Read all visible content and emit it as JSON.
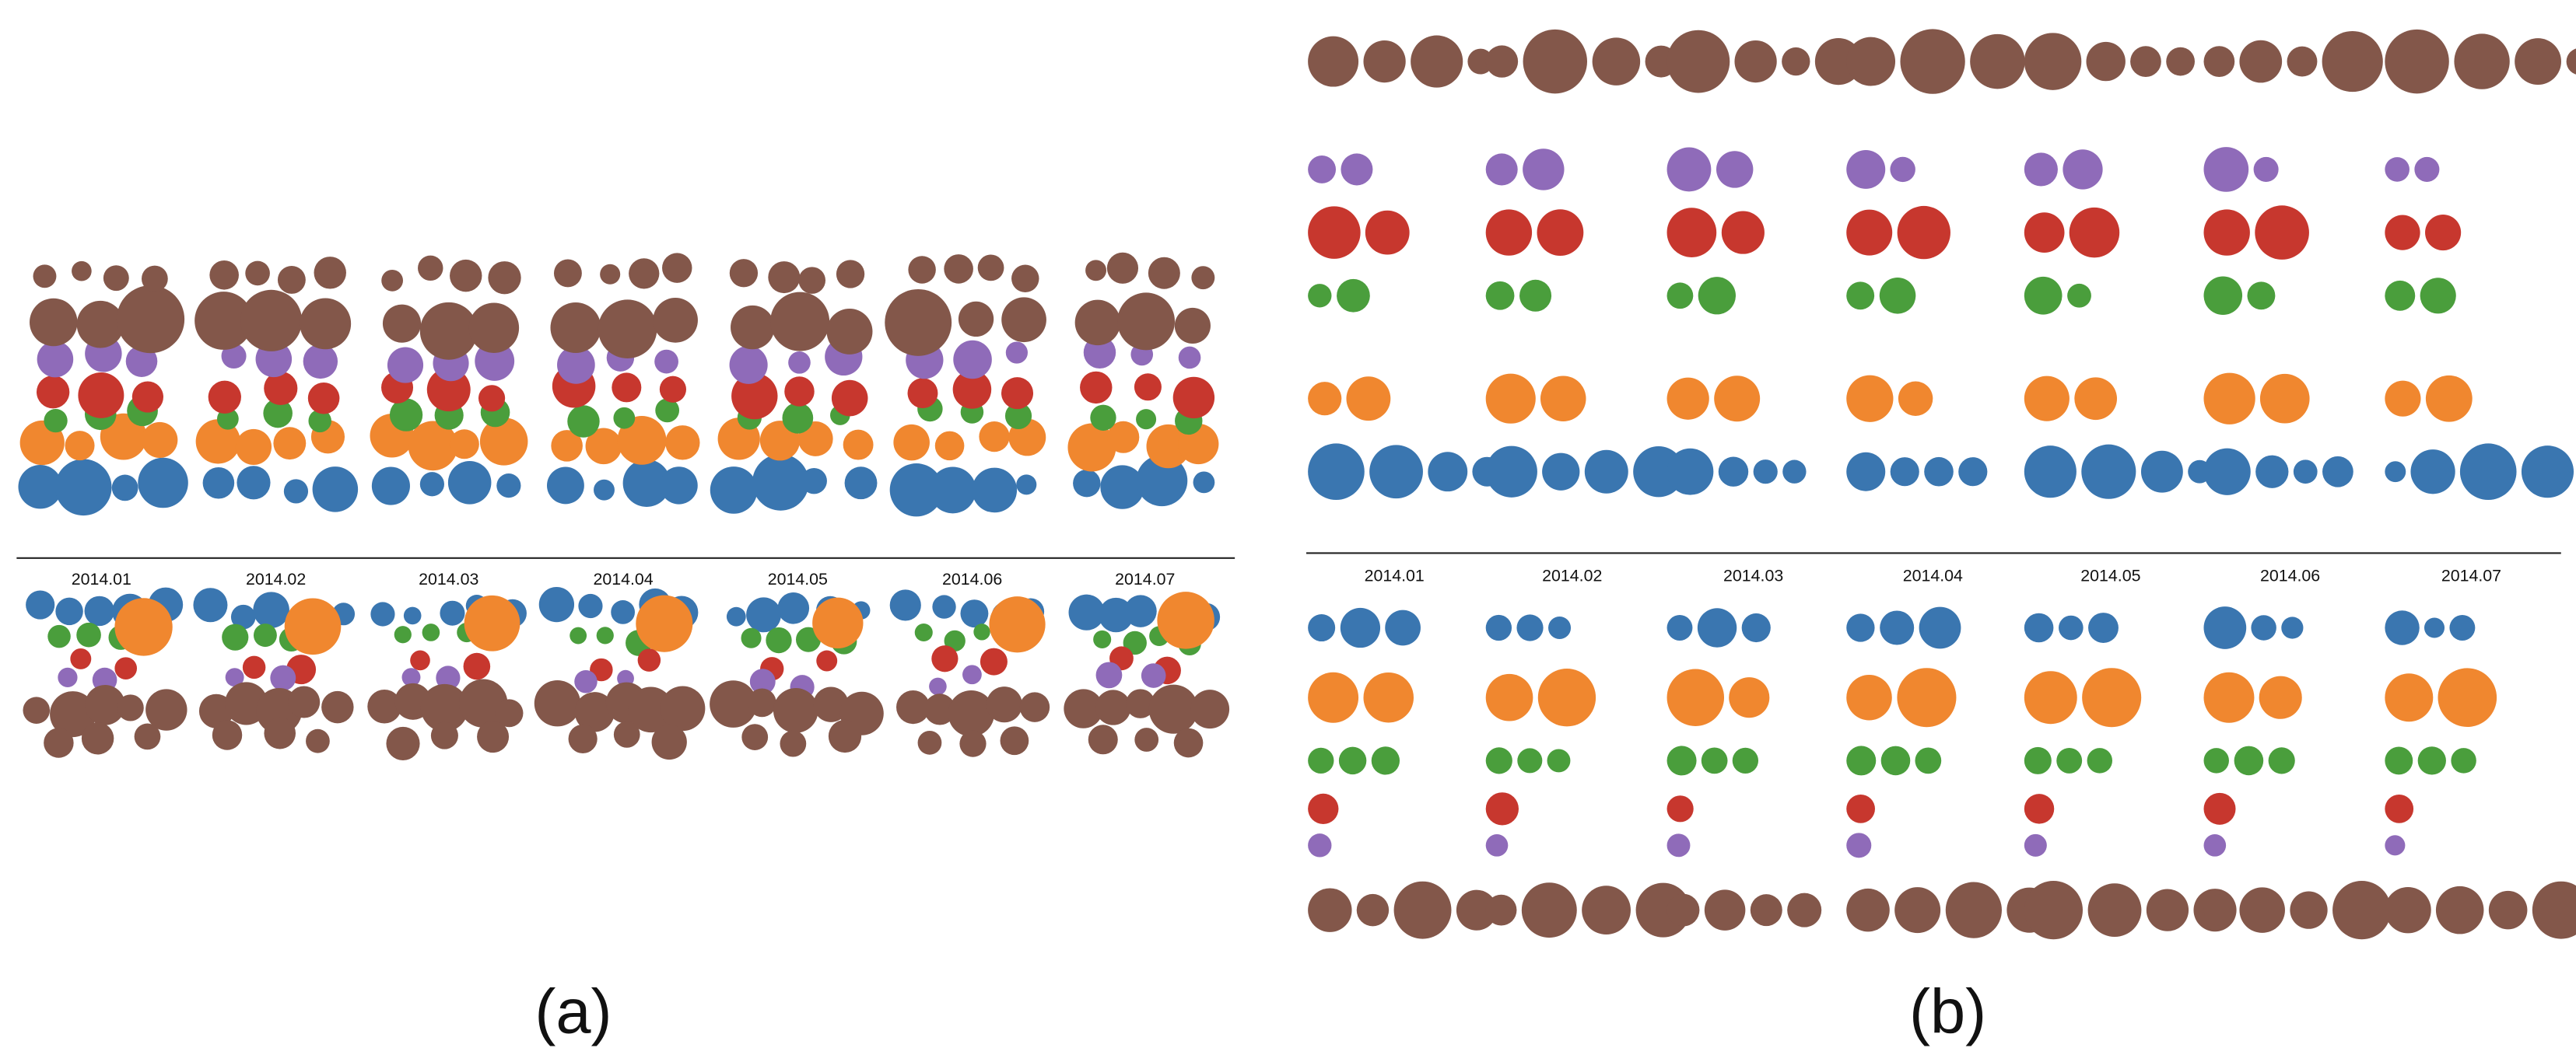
{
  "panels": [
    {
      "label": "(a)",
      "months": [
        "2014.01",
        "2014.02",
        "2014.03",
        "2014.04",
        "2014.05",
        "2014.06",
        "2014.07"
      ]
    },
    {
      "label": "(b)",
      "months": [
        "2014.01",
        "2014.02",
        "2014.03",
        "2014.04",
        "2014.05",
        "2014.06",
        "2014.07"
      ]
    }
  ]
}
